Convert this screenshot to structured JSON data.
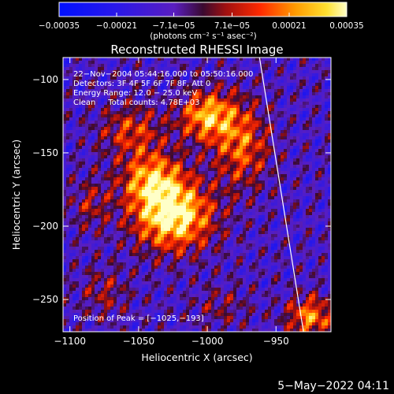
{
  "chart_data": {
    "type": "heatmap",
    "title": "Reconstructed RHESSI Image",
    "xlabel": "Heliocentric X (arcsec)",
    "ylabel": "Heliocentric Y (arcsec)",
    "xlim": [
      -1105,
      -910
    ],
    "ylim": [
      -272,
      -85
    ],
    "x_ticks": [
      -1100,
      -1050,
      -1000,
      -950
    ],
    "x_tick_labels": [
      "−1100",
      "−1050",
      "−1000",
      "−950"
    ],
    "y_ticks": [
      -100,
      -150,
      -200,
      -250
    ],
    "y_tick_labels": [
      "−100",
      "−150",
      "−200",
      "−250"
    ],
    "colorbar": {
      "range": [
        -0.00035,
        0.00035
      ],
      "ticks": [
        -0.00035,
        -0.00021,
        -7.1e-05,
        7.1e-05,
        0.00021,
        0.00035
      ],
      "tick_labels": [
        "−0.00035",
        "−0.00021",
        "−7.1e−05",
        "7.1e−05",
        "0.00021",
        "0.00035"
      ],
      "unit_label": "(photons cm⁻² s⁻¹ asec⁻²)"
    },
    "annotations": [
      "22−Nov−2004 05:44:16.000 to 05:50:16.000",
      "Detectors: 3F 4F 5F 6F 7F 8F, Att 0",
      "Energy Range: 12.0 − 25.0 keV",
      "Clean     Total counts: 4.78E+03"
    ],
    "peak_label": "Position of Peak = [−1025,−193]",
    "peak": [
      -1025,
      -193
    ],
    "limb_line": [
      [
        -962,
        -85
      ],
      [
        -930,
        -272
      ]
    ],
    "sources": [
      {
        "x": -1025,
        "y": -193,
        "amp": 1.0,
        "sx": 20,
        "sy": 16
      },
      {
        "x": -1040,
        "y": -168,
        "amp": 0.7,
        "sx": 16,
        "sy": 13
      },
      {
        "x": -1000,
        "y": -125,
        "amp": 0.75,
        "sx": 14,
        "sy": 12
      },
      {
        "x": -975,
        "y": -145,
        "amp": 0.55,
        "sx": 14,
        "sy": 20
      },
      {
        "x": -1055,
        "y": -135,
        "amp": 0.45,
        "sx": 16,
        "sy": 12
      },
      {
        "x": -1085,
        "y": -185,
        "amp": 0.3,
        "sx": 10,
        "sy": 12
      },
      {
        "x": -925,
        "y": -262,
        "amp": 0.65,
        "sx": 12,
        "sy": 10
      },
      {
        "x": -1075,
        "y": -245,
        "amp": 0.28,
        "sx": 12,
        "sy": 12
      },
      {
        "x": -990,
        "y": -255,
        "amp": 0.22,
        "sx": 14,
        "sy": 10
      }
    ]
  },
  "footer": {
    "date": "5−May−2022 04:11"
  }
}
